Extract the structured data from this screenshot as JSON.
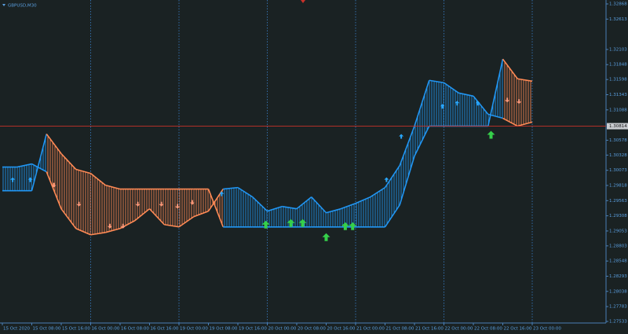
{
  "chart_data": {
    "type": "trend-band",
    "title": "GBPUSD,M30",
    "categories": [
      "15 Oct 2020",
      null,
      "15 Oct 08:00",
      null,
      "15 Oct 16:00",
      null,
      "16 Oct 00:00",
      null,
      "16 Oct 08:00",
      null,
      "16 Oct 16:00",
      null,
      "19 Oct 00:00",
      null,
      "19 Oct 08:00",
      null,
      "19 Oct 16:00",
      null,
      "20 Oct 00:00",
      null,
      "20 Oct 08:00",
      null,
      "20 Oct 16:00",
      null,
      "21 Oct 00:00",
      null,
      "21 Oct 08:00",
      null,
      "21 Oct 16:00",
      null,
      "22 Oct 00:00",
      null,
      "22 Oct 08:00",
      null,
      "22 Oct 16:00",
      null,
      "23 Oct 00:00"
    ],
    "series": [
      {
        "values": [
          1.30127,
          1.30127,
          1.3018,
          1.30048,
          1.29426,
          1.29095,
          1.28989,
          1.29028,
          1.29095,
          1.29227,
          1.29426,
          1.29161,
          1.29121,
          1.29293,
          1.29386,
          1.29757,
          1.29783,
          1.29624,
          1.29386,
          1.29465,
          1.29426,
          1.29624,
          1.29359,
          1.29426,
          1.29518,
          1.29624,
          1.29783,
          1.30154,
          1.30816,
          1.31584,
          1.31544,
          1.31372,
          1.31319,
          1.31014,
          1.30948,
          1.30816,
          1.30882
        ]
      },
      {
        "values": [
          1.2973,
          1.2973,
          1.2973,
          1.30683,
          1.30352,
          1.30088,
          1.30021,
          1.29823,
          1.29757,
          1.29757,
          1.29757,
          1.29757,
          1.29757,
          1.29757,
          1.29757,
          1.29121,
          1.29121,
          1.29121,
          1.29121,
          1.29121,
          1.29121,
          1.29121,
          1.29121,
          1.29121,
          1.29121,
          1.29121,
          1.29121,
          1.29492,
          1.30313,
          1.30816,
          1.30816,
          1.30816,
          1.30816,
          1.30816,
          1.31941,
          1.3161,
          1.3157
        ]
      }
    ],
    "up_color": "#2196f3",
    "down_color": "#ff8a55",
    "markers": [
      {
        "symbol": "big-up",
        "color": "#35d04a",
        "x": [
          17.9,
          19.6,
          20.4,
          22.0,
          23.3,
          23.8,
          33.2
        ],
        "y": [
          1.29227,
          1.29253,
          1.29253,
          1.29015,
          1.29201,
          1.29201,
          1.30736
        ]
      },
      {
        "symbol": "up",
        "color": "#29a8ff",
        "x": [
          0.7,
          1.9,
          14.9,
          26.1,
          27.1,
          29.9,
          30.9,
          32.3
        ],
        "y": [
          1.29955,
          1.29955,
          1.29717,
          1.29955,
          1.30683,
          1.31187,
          1.3124,
          1.3124
        ]
      },
      {
        "symbol": "down",
        "color": "#ff9a7a",
        "x": [
          3.5,
          5.2,
          7.3,
          8.2,
          9.2,
          10.8,
          11.9,
          12.9,
          34.3,
          35.1
        ],
        "y": [
          1.29783,
          1.29465,
          1.29095,
          1.29095,
          1.29465,
          1.29465,
          1.29426,
          1.29492,
          1.31213,
          1.31187
        ]
      }
    ],
    "current_price": 1.30814,
    "current_price_color": "#c8322a",
    "ylim": [
      1.27507,
      1.32934
    ],
    "yticks": [
      1.32868,
      1.32613,
      1.32103,
      1.31848,
      1.31598,
      1.31343,
      1.31088,
      1.30578,
      1.30328,
      1.30073,
      1.29818,
      1.29563,
      1.29308,
      1.29053,
      1.28803,
      1.28548,
      1.28293,
      1.28038,
      1.27783,
      1.27533
    ]
  }
}
